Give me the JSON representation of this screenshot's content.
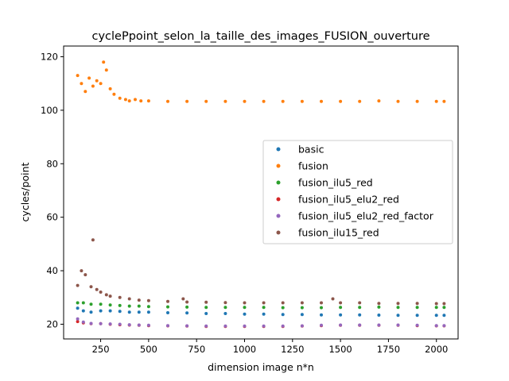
{
  "chart_data": {
    "type": "scatter",
    "title": "cyclePpoint_selon_la_taille_des_images_FUSION_ouverture",
    "xlabel": "dimension image n*n",
    "ylabel": "cycles/point",
    "xlim": [
      57,
      2113
    ],
    "ylim": [
      14.5,
      124
    ],
    "xticks": [
      250,
      500,
      750,
      1000,
      1250,
      1500,
      1750,
      2000
    ],
    "yticks": [
      20,
      40,
      60,
      80,
      100,
      120
    ],
    "x_tick_labels": [
      "250",
      "500",
      "750",
      "1000",
      "1250",
      "1500",
      "1750",
      "2000"
    ],
    "y_tick_labels": [
      "20",
      "40",
      "60",
      "80",
      "100",
      "120"
    ],
    "legend_position": "center-right",
    "grid": false,
    "series": [
      {
        "name": "basic",
        "color": "#1f77b4",
        "x": [
          130,
          160,
          200,
          250,
          300,
          350,
          400,
          450,
          500,
          600,
          700,
          800,
          900,
          1000,
          1100,
          1200,
          1300,
          1400,
          1500,
          1600,
          1700,
          1800,
          1900,
          2000,
          2040
        ],
        "y": [
          26,
          25,
          24.5,
          25,
          25,
          24.8,
          24.5,
          24.5,
          24.5,
          24.3,
          24.2,
          24.0,
          24.0,
          23.8,
          23.8,
          23.6,
          23.6,
          23.5,
          23.5,
          23.5,
          23.4,
          23.3,
          23.3,
          23.3,
          23.3
        ]
      },
      {
        "name": "fusion",
        "color": "#ff7f0e",
        "x": [
          130,
          150,
          170,
          190,
          210,
          230,
          250,
          265,
          280,
          300,
          320,
          350,
          380,
          400,
          430,
          460,
          500,
          600,
          700,
          800,
          900,
          1000,
          1100,
          1200,
          1300,
          1400,
          1500,
          1600,
          1700,
          1800,
          1900,
          2000,
          2040
        ],
        "y": [
          113,
          110,
          107,
          112,
          109,
          111,
          110,
          118,
          115,
          108,
          106,
          104.5,
          104,
          103.5,
          104,
          103.5,
          103.5,
          103.3,
          103.3,
          103.3,
          103.3,
          103.3,
          103.3,
          103.3,
          103.3,
          103.3,
          103.3,
          103.3,
          103.5,
          103.3,
          103.3,
          103.3,
          103.3
        ]
      },
      {
        "name": "fusion_ilu5_red",
        "color": "#2ca02c",
        "x": [
          130,
          160,
          200,
          250,
          300,
          350,
          400,
          450,
          500,
          600,
          700,
          800,
          900,
          1000,
          1100,
          1200,
          1300,
          1400,
          1500,
          1600,
          1700,
          1800,
          1900,
          2000,
          2040
        ],
        "y": [
          28,
          28,
          27.5,
          27.5,
          27.2,
          27,
          26.8,
          26.8,
          26.6,
          26.5,
          26.4,
          26.3,
          26.3,
          26.3,
          26.3,
          26.2,
          26.2,
          26.2,
          26.3,
          26.3,
          26.4,
          26.3,
          26.3,
          26.3,
          26.3
        ]
      },
      {
        "name": "fusion_ilu5_elu2_red",
        "color": "#d62728",
        "x": [
          130,
          160,
          200,
          250,
          300,
          350,
          400,
          450,
          500,
          600,
          700,
          800,
          900,
          1000,
          1100,
          1200,
          1300,
          1400,
          1500,
          1600,
          1700,
          1800,
          1900,
          2000,
          2040
        ],
        "y": [
          21,
          20.5,
          20.2,
          20.2,
          20.0,
          19.8,
          19.7,
          19.6,
          19.5,
          19.4,
          19.3,
          19.2,
          19.2,
          19.2,
          19.2,
          19.2,
          19.3,
          19.5,
          19.6,
          19.6,
          19.6,
          19.6,
          19.5,
          19.4,
          19.4
        ]
      },
      {
        "name": "fusion_ilu5_elu2_red_factor",
        "color": "#9467bd",
        "x": [
          130,
          160,
          200,
          250,
          300,
          350,
          400,
          450,
          500,
          600,
          700,
          800,
          900,
          1000,
          1100,
          1200,
          1300,
          1400,
          1500,
          1600,
          1700,
          1800,
          1900,
          2000,
          2040
        ],
        "y": [
          22,
          20.8,
          20.3,
          20.2,
          20.1,
          20.0,
          19.8,
          19.7,
          19.6,
          19.5,
          19.4,
          19.3,
          19.3,
          19.3,
          19.3,
          19.3,
          19.4,
          19.6,
          19.7,
          19.7,
          19.7,
          19.7,
          19.6,
          19.5,
          19.5
        ]
      },
      {
        "name": "fusion_ilu15_red",
        "color": "#8c564b",
        "x": [
          130,
          150,
          170,
          200,
          210,
          230,
          250,
          280,
          300,
          350,
          400,
          450,
          500,
          600,
          680,
          700,
          800,
          900,
          1000,
          1100,
          1200,
          1300,
          1400,
          1460,
          1500,
          1600,
          1700,
          1800,
          1900,
          2000,
          2040
        ],
        "y": [
          34.5,
          40,
          38.5,
          34,
          51.5,
          33,
          32,
          31,
          30.5,
          30,
          29.5,
          29,
          28.8,
          28.5,
          29.5,
          28.3,
          28.2,
          28.1,
          28.0,
          28.0,
          28.0,
          28.0,
          28.0,
          29.5,
          28.0,
          28.0,
          27.8,
          27.8,
          27.8,
          27.7,
          27.7
        ]
      }
    ]
  }
}
